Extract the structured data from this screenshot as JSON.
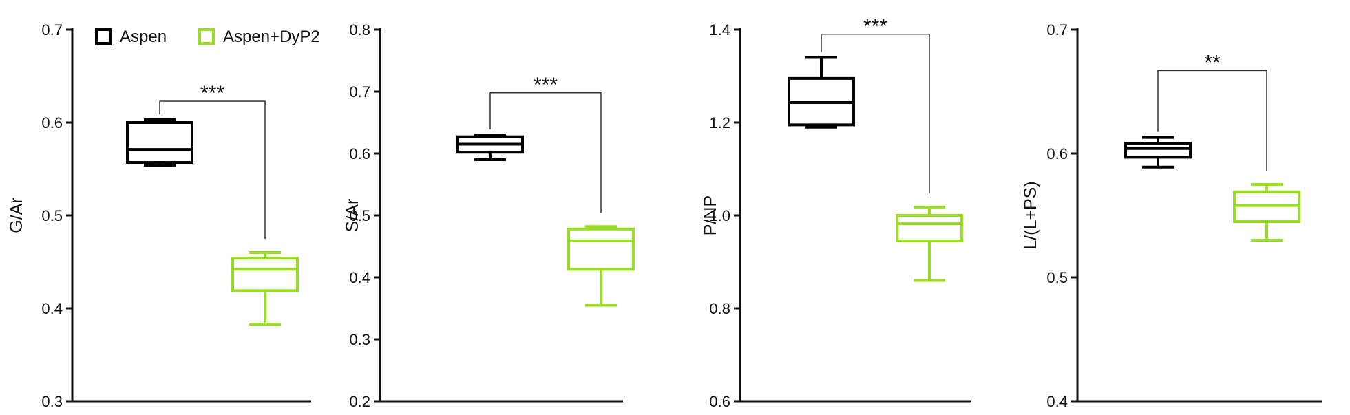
{
  "legend": {
    "position": "top",
    "items": [
      {
        "name": "Aspen",
        "color": "#000000"
      },
      {
        "name": "Aspen+DyP2",
        "color": "#99dd22"
      }
    ]
  },
  "chart_data": [
    {
      "type": "boxplot",
      "ylabel": "G/Ar",
      "ylim": [
        0.3,
        0.7
      ],
      "yticks": [
        "0.3",
        "0.4",
        "0.5",
        "0.6",
        "0.7"
      ],
      "boxes": [
        {
          "series": "Aspen",
          "color": "#000000",
          "min": 0.554,
          "q1": 0.557,
          "median": 0.571,
          "q3": 0.6,
          "max": 0.603
        },
        {
          "series": "Aspen+DyP2",
          "color": "#99dd22",
          "min": 0.383,
          "q1": 0.419,
          "median": 0.442,
          "q3": 0.454,
          "max": 0.46
        }
      ],
      "significance": "***",
      "bracket_y": 0.623
    },
    {
      "type": "boxplot",
      "ylabel": "S/Ar",
      "ylim": [
        0.2,
        0.8
      ],
      "yticks": [
        "0.2",
        "0.3",
        "0.4",
        "0.5",
        "0.6",
        "0.7",
        "0.8"
      ],
      "boxes": [
        {
          "series": "Aspen",
          "color": "#000000",
          "min": 0.59,
          "q1": 0.602,
          "median": 0.615,
          "q3": 0.627,
          "max": 0.63
        },
        {
          "series": "Aspen+DyP2",
          "color": "#99dd22",
          "min": 0.355,
          "q1": 0.413,
          "median": 0.459,
          "q3": 0.478,
          "max": 0.482
        }
      ],
      "significance": "***",
      "bracket_y": 0.698
    },
    {
      "type": "boxplot",
      "ylabel": "P/NP",
      "ylim": [
        0.6,
        1.4
      ],
      "yticks": [
        "0.6",
        "0.8",
        "1.0",
        "1.2",
        "1.4"
      ],
      "boxes": [
        {
          "series": "Aspen",
          "color": "#000000",
          "min": 1.19,
          "q1": 1.195,
          "median": 1.243,
          "q3": 1.295,
          "max": 1.34
        },
        {
          "series": "Aspen+DyP2",
          "color": "#99dd22",
          "min": 0.86,
          "q1": 0.945,
          "median": 0.982,
          "q3": 1.0,
          "max": 1.018
        }
      ],
      "significance": "***",
      "bracket_y": 1.39
    },
    {
      "type": "boxplot",
      "ylabel": "L/(L+PS)",
      "ylim": [
        0.4,
        0.7
      ],
      "yticks": [
        "0.4",
        "0.5",
        "0.6",
        "0.7"
      ],
      "boxes": [
        {
          "series": "Aspen",
          "color": "#000000",
          "min": 0.589,
          "q1": 0.597,
          "median": 0.604,
          "q3": 0.608,
          "max": 0.613
        },
        {
          "series": "Aspen+DyP2",
          "color": "#99dd22",
          "min": 0.53,
          "q1": 0.545,
          "median": 0.558,
          "q3": 0.569,
          "max": 0.575
        }
      ],
      "significance": "**",
      "bracket_y": 0.667
    }
  ]
}
